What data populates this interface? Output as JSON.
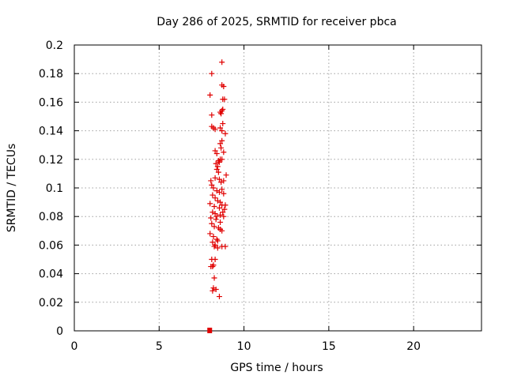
{
  "chart_data": {
    "type": "scatter",
    "title": "Day 286 of 2025, SRMTID for receiver pbca",
    "xlabel": "GPS time / hours",
    "ylabel": "SRMTID / TECUs",
    "xlim": [
      0,
      24
    ],
    "ylim": [
      0,
      0.2
    ],
    "xticks": [
      "0",
      "5",
      "10",
      "15",
      "20"
    ],
    "xtick_values": [
      0,
      5,
      10,
      15,
      20
    ],
    "yticks": [
      "0",
      "0.02",
      "0.04",
      "0.06",
      "0.08",
      "0.1",
      "0.12",
      "0.14",
      "0.16",
      "0.18",
      "0.2"
    ],
    "ytick_values": [
      0,
      0.02,
      0.04,
      0.06,
      0.08,
      0.1,
      0.12,
      0.14,
      0.16,
      0.18,
      0.2
    ],
    "grid": true,
    "marker": "+",
    "color": "#e00000",
    "baseline_marker": {
      "x": 7.98,
      "y": 0.0,
      "label": ""
    },
    "series": [
      {
        "name": "SRMTID",
        "x": [
          8.7,
          8.1,
          8.7,
          8.8,
          8.0,
          8.75,
          8.85,
          8.1,
          8.75,
          8.6,
          8.65,
          8.7,
          8.1,
          8.2,
          8.3,
          8.6,
          8.75,
          8.7,
          8.9,
          8.7,
          8.6,
          8.65,
          8.3,
          8.4,
          8.8,
          8.6,
          8.5,
          8.35,
          8.45,
          8.55,
          8.7,
          8.4,
          8.5,
          8.95,
          8.05,
          8.3,
          8.55,
          8.65,
          8.8,
          8.1,
          8.2,
          8.4,
          8.55,
          8.7,
          8.8,
          8.15,
          8.3,
          8.6,
          8.9,
          8.0,
          8.25,
          8.45,
          8.55,
          8.7,
          8.85,
          8.15,
          8.3,
          8.4,
          8.6,
          8.75,
          8.05,
          8.35,
          8.6,
          8.8,
          8.1,
          8.25,
          8.5,
          8.7,
          8.0,
          8.2,
          8.4,
          8.6,
          8.15,
          8.3,
          8.45,
          8.25,
          8.45,
          8.7,
          8.9,
          8.1,
          8.3,
          8.2,
          8.15,
          8.05,
          8.25,
          8.2,
          8.15,
          8.35,
          8.55
        ],
        "y": [
          0.188,
          0.18,
          0.172,
          0.171,
          0.165,
          0.162,
          0.162,
          0.151,
          0.155,
          0.153,
          0.152,
          0.154,
          0.143,
          0.142,
          0.141,
          0.142,
          0.145,
          0.14,
          0.138,
          0.133,
          0.131,
          0.128,
          0.126,
          0.124,
          0.125,
          0.12,
          0.119,
          0.117,
          0.115,
          0.118,
          0.12,
          0.113,
          0.111,
          0.109,
          0.105,
          0.107,
          0.106,
          0.104,
          0.105,
          0.102,
          0.1,
          0.098,
          0.097,
          0.099,
          0.096,
          0.095,
          0.093,
          0.09,
          0.088,
          0.089,
          0.087,
          0.091,
          0.086,
          0.088,
          0.085,
          0.083,
          0.082,
          0.08,
          0.081,
          0.083,
          0.079,
          0.078,
          0.076,
          0.08,
          0.075,
          0.073,
          0.072,
          0.07,
          0.068,
          0.066,
          0.064,
          0.071,
          0.062,
          0.06,
          0.058,
          0.059,
          0.063,
          0.059,
          0.059,
          0.05,
          0.05,
          0.046,
          0.045,
          0.045,
          0.037,
          0.03,
          0.028,
          0.029,
          0.024
        ]
      }
    ]
  }
}
